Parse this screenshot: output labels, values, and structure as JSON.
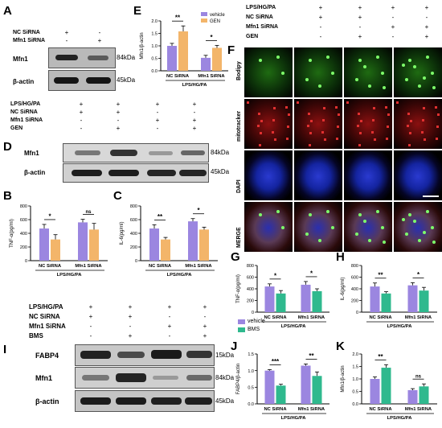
{
  "panels": {
    "A": {
      "label": "A",
      "rows": [
        {
          "name": "NC SiRNA",
          "signs": [
            "+",
            "-"
          ]
        },
        {
          "name": "Mfn1 SiRNA",
          "signs": [
            "-",
            "+"
          ]
        }
      ],
      "blots": [
        {
          "name": "Mfn1",
          "size": "84kDa"
        },
        {
          "name": "β-actin",
          "size": "45kDa"
        }
      ]
    },
    "D": {
      "label": "D",
      "rows": [
        {
          "name": "LPS/HG/PA",
          "signs": [
            "+",
            "+",
            "+",
            "+"
          ]
        },
        {
          "name": "NC SiRNA",
          "signs": [
            "+",
            "+",
            "-",
            "-"
          ]
        },
        {
          "name": "Mfn1 SiRNA",
          "signs": [
            "-",
            "-",
            "+",
            "+"
          ]
        },
        {
          "name": "GEN",
          "signs": [
            "-",
            "+",
            "-",
            "+"
          ]
        }
      ],
      "blots": [
        {
          "name": "Mfn1",
          "size": "84kDa"
        },
        {
          "name": "β-actin",
          "size": "45kDa"
        }
      ]
    },
    "F": {
      "label": "F",
      "rows": [
        {
          "name": "LPS/HG/PA",
          "signs": [
            "+",
            "+",
            "+",
            "+"
          ]
        },
        {
          "name": "NC SiRNA",
          "signs": [
            "+",
            "+",
            "-",
            "-"
          ]
        },
        {
          "name": "Mfn1 SiRNA",
          "signs": [
            "-",
            "-",
            "+",
            "+"
          ]
        },
        {
          "name": "GEN",
          "signs": [
            "-",
            "+",
            "-",
            "+"
          ]
        }
      ],
      "row_labels": [
        "Bodipy",
        "mitotracker",
        "DAPI",
        "MERGE"
      ],
      "channel_colors": [
        "#1f6b12",
        "#8a1010",
        "#1424a0",
        "#5a3a55"
      ]
    },
    "I": {
      "label": "I",
      "rows": [
        {
          "name": "LPS/HG/PA",
          "signs": [
            "+",
            "+",
            "+",
            "+"
          ]
        },
        {
          "name": "NC SiRNA",
          "signs": [
            "+",
            "+",
            "-",
            "-"
          ]
        },
        {
          "name": "Mfn1 SiRNA",
          "signs": [
            "-",
            "-",
            "+",
            "+"
          ]
        },
        {
          "name": "BMS",
          "signs": [
            "-",
            "+",
            "-",
            "+"
          ]
        }
      ],
      "blots": [
        {
          "name": "FABP4",
          "size": "15kDa"
        },
        {
          "name": "Mfn1",
          "size": "84kDa"
        },
        {
          "name": "β-actin",
          "size": "45kDa"
        }
      ]
    }
  },
  "legend_gen": {
    "items": [
      {
        "name": "vehicle",
        "color": "#9b86e0"
      },
      {
        "name": "GEN",
        "color": "#f3b56a"
      }
    ]
  },
  "legend_bms": {
    "items": [
      {
        "name": "vehicle",
        "color": "#9b86e0"
      },
      {
        "name": "BMS",
        "color": "#2fb98e"
      }
    ]
  },
  "chart_data": [
    {
      "panel": "E",
      "type": "bar",
      "ylabel": "Mfn1/β-actin",
      "ylim": [
        0,
        2.0
      ],
      "yticks": [
        "0.0",
        "0.5",
        "1.0",
        "1.5",
        "2.0"
      ],
      "categories": [
        "NC SiRNA",
        "Mfn1 SiRNA"
      ],
      "group_label": "LPS/HG/PA",
      "series": [
        {
          "name": "vehicle",
          "values": [
            1.0,
            0.52
          ],
          "errors": [
            0.1,
            0.1
          ]
        },
        {
          "name": "GEN",
          "values": [
            1.58,
            0.92
          ],
          "errors": [
            0.22,
            0.1
          ]
        }
      ],
      "sig": [
        {
          "text": "**",
          "group": 0
        },
        {
          "text": "*",
          "group": 1
        }
      ]
    },
    {
      "panel": "B",
      "type": "bar",
      "ylabel": "TNF-α(pg/ml)",
      "ylim": [
        0,
        800
      ],
      "yticks": [
        "0",
        "200",
        "400",
        "600",
        "800"
      ],
      "categories": [
        "NC SiRNA",
        "Mfn1 SiRNA"
      ],
      "group_label": "LPS/HG/PA",
      "series": [
        {
          "name": "vehicle",
          "values": [
            470,
            560
          ],
          "errors": [
            60,
            45
          ]
        },
        {
          "name": "GEN",
          "values": [
            310,
            455
          ],
          "errors": [
            70,
            90
          ]
        }
      ],
      "sig": [
        {
          "text": "*",
          "group": 0
        },
        {
          "text": "ns",
          "group": 1
        }
      ]
    },
    {
      "panel": "C",
      "type": "bar",
      "ylabel": "IL-6(pg/ml)",
      "ylim": [
        0,
        800
      ],
      "yticks": [
        "0",
        "200",
        "400",
        "600",
        "800"
      ],
      "categories": [
        "NC SiRNA",
        "Mfn1 SiRNA"
      ],
      "group_label": "LPS/HG/PA",
      "series": [
        {
          "name": "vehicle",
          "values": [
            470,
            575
          ],
          "errors": [
            55,
            40
          ]
        },
        {
          "name": "GEN",
          "values": [
            310,
            455
          ],
          "errors": [
            30,
            35
          ]
        }
      ],
      "sig": [
        {
          "text": "**",
          "group": 0
        },
        {
          "text": "*",
          "group": 1
        }
      ]
    },
    {
      "panel": "G",
      "type": "bar",
      "ylabel": "TNF-α(pg/ml)",
      "ylim": [
        0,
        800
      ],
      "yticks": [
        "0",
        "200",
        "400",
        "600",
        "800"
      ],
      "categories": [
        "NC SiRNA",
        "Mfn1 SiRNA"
      ],
      "group_label": "LPS/HG/PA",
      "series": [
        {
          "name": "vehicle",
          "values": [
            440,
            470
          ],
          "errors": [
            45,
            55
          ]
        },
        {
          "name": "BMS",
          "values": [
            320,
            360
          ],
          "errors": [
            50,
            40
          ]
        }
      ],
      "sig": [
        {
          "text": "*",
          "group": 0
        },
        {
          "text": "*",
          "group": 1
        }
      ]
    },
    {
      "panel": "H",
      "type": "bar",
      "ylabel": "IL-6(pg/ml)",
      "ylim": [
        0,
        800
      ],
      "yticks": [
        "0",
        "200",
        "400",
        "600",
        "800"
      ],
      "categories": [
        "NC SiRNA",
        "Mfn1 SiRNA"
      ],
      "group_label": "LPS/HG/PA",
      "series": [
        {
          "name": "vehicle",
          "values": [
            440,
            460
          ],
          "errors": [
            60,
            45
          ]
        },
        {
          "name": "BMS",
          "values": [
            320,
            370
          ],
          "errors": [
            30,
            55
          ]
        }
      ],
      "sig": [
        {
          "text": "**",
          "group": 0
        },
        {
          "text": "*",
          "group": 1
        }
      ]
    },
    {
      "panel": "J",
      "type": "bar",
      "ylabel": "FABP4/β-actin",
      "ylim": [
        0,
        1.5
      ],
      "yticks": [
        "0.0",
        "0.5",
        "1.0",
        "1.5"
      ],
      "categories": [
        "NC SiRNA",
        "Mfn1 SiRNA"
      ],
      "group_label": "LPS/HG/PA",
      "series": [
        {
          "name": "vehicle",
          "values": [
            1.0,
            1.15
          ],
          "errors": [
            0.03,
            0.05
          ]
        },
        {
          "name": "BMS",
          "values": [
            0.55,
            0.84
          ],
          "errors": [
            0.04,
            0.12
          ]
        }
      ],
      "sig": [
        {
          "text": "***",
          "group": 0
        },
        {
          "text": "**",
          "group": 1
        }
      ]
    },
    {
      "panel": "K",
      "type": "bar",
      "ylabel": "Mfn1/β-actin",
      "ylim": [
        0,
        2.0
      ],
      "yticks": [
        "0.0",
        "0.5",
        "1.0",
        "1.5",
        "2.0"
      ],
      "categories": [
        "NC SiRNA",
        "Mfn1 SiRNA"
      ],
      "group_label": "LPS/HG/PA",
      "series": [
        {
          "name": "vehicle",
          "values": [
            1.0,
            0.55
          ],
          "errors": [
            0.08,
            0.06
          ]
        },
        {
          "name": "BMS",
          "values": [
            1.45,
            0.7
          ],
          "errors": [
            0.12,
            0.1
          ]
        }
      ],
      "sig": [
        {
          "text": "**",
          "group": 0
        },
        {
          "text": "ns",
          "group": 1
        }
      ]
    }
  ]
}
